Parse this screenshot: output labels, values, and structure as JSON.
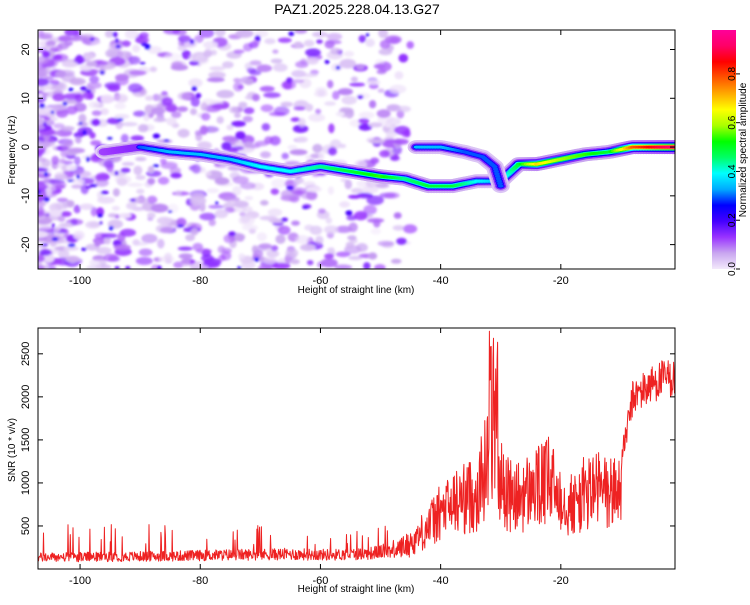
{
  "figure": {
    "title": "PAZ1.2025.228.04.13.G27"
  },
  "chart_data": [
    {
      "type": "heatmap",
      "title": "PAZ1.2025.228.04.13.G27",
      "xlabel": "Height of straight line (km)",
      "ylabel": "Frequency (Hz)",
      "xlim": [
        -107,
        -1
      ],
      "ylim": [
        -25,
        24
      ],
      "x_ticks": [
        -100,
        -80,
        -60,
        -40,
        -20
      ],
      "y_ticks": [
        -20,
        -10,
        0,
        10,
        20
      ],
      "colorbar": {
        "label": "Normalized spectral amplitude",
        "range": [
          0,
          0.98
        ],
        "ticks": [
          0.0,
          0.2,
          0.4,
          0.6,
          0.8
        ],
        "colors": [
          "#f3e9fb",
          "#c9a6f0",
          "#9933ff",
          "#4400ff",
          "#0000ff",
          "#00aaff",
          "#00ffff",
          "#00ff66",
          "#00ff00",
          "#aaff00",
          "#ffff00",
          "#ffaa00",
          "#ff5500",
          "#ff0000",
          "#ff0066",
          "#ff0099"
        ]
      },
      "ridge": {
        "x": [
          -96,
          -90,
          -85,
          -80,
          -75,
          -70,
          -65,
          -60,
          -55,
          -50,
          -46,
          -42,
          -38,
          -34,
          -30,
          -27,
          -24,
          -20,
          -16,
          -12,
          -8,
          -4,
          -1
        ],
        "y": [
          -1,
          0,
          -1,
          -1.5,
          -2.5,
          -4,
          -5,
          -4,
          -5,
          -6,
          -6.5,
          -8,
          -8,
          -7,
          -7,
          -3.5,
          -3.5,
          -2.5,
          -1.5,
          -1,
          0,
          0,
          0
        ],
        "amplitude": [
          0.25,
          0.3,
          0.35,
          0.35,
          0.35,
          0.4,
          0.4,
          0.45,
          0.5,
          0.55,
          0.45,
          0.5,
          0.5,
          0.4,
          0.35,
          0.5,
          0.7,
          0.6,
          0.55,
          0.5,
          0.8,
          0.9,
          0.95
        ]
      },
      "branch": {
        "x": [
          -44,
          -40,
          -36,
          -33,
          -31,
          -30
        ],
        "y": [
          0,
          0,
          -1,
          -2,
          -4,
          -8
        ],
        "amplitude": [
          0.35,
          0.35,
          0.3,
          0.3,
          0.3,
          0.3
        ]
      }
    },
    {
      "type": "line",
      "xlabel": "Height of straight line (km)",
      "ylabel": "SNR (10 * v/v)",
      "xlim": [
        -107,
        -1
      ],
      "ylim": [
        0,
        2800
      ],
      "x_ticks": [
        -100,
        -80,
        -60,
        -40,
        -20
      ],
      "y_ticks": [
        500,
        1000,
        1500,
        2000,
        2500
      ],
      "line_color": "#ee2222",
      "envelope": {
        "x": [
          -107,
          -95,
          -85,
          -75,
          -65,
          -58,
          -52,
          -48,
          -45,
          -43,
          -40,
          -37,
          -34,
          -32,
          -31,
          -30,
          -28,
          -26,
          -24,
          -22,
          -20,
          -18,
          -16,
          -14,
          -12,
          -10,
          -8,
          -6,
          -4,
          -1
        ],
        "y": [
          180,
          190,
          200,
          220,
          230,
          220,
          240,
          300,
          400,
          600,
          900,
          1100,
          1200,
          1800,
          2100,
          1400,
          1100,
          1200,
          1300,
          1400,
          1200,
          1000,
          1200,
          1300,
          1200,
          1300,
          2100,
          2200,
          2300,
          2350
        ]
      }
    }
  ]
}
